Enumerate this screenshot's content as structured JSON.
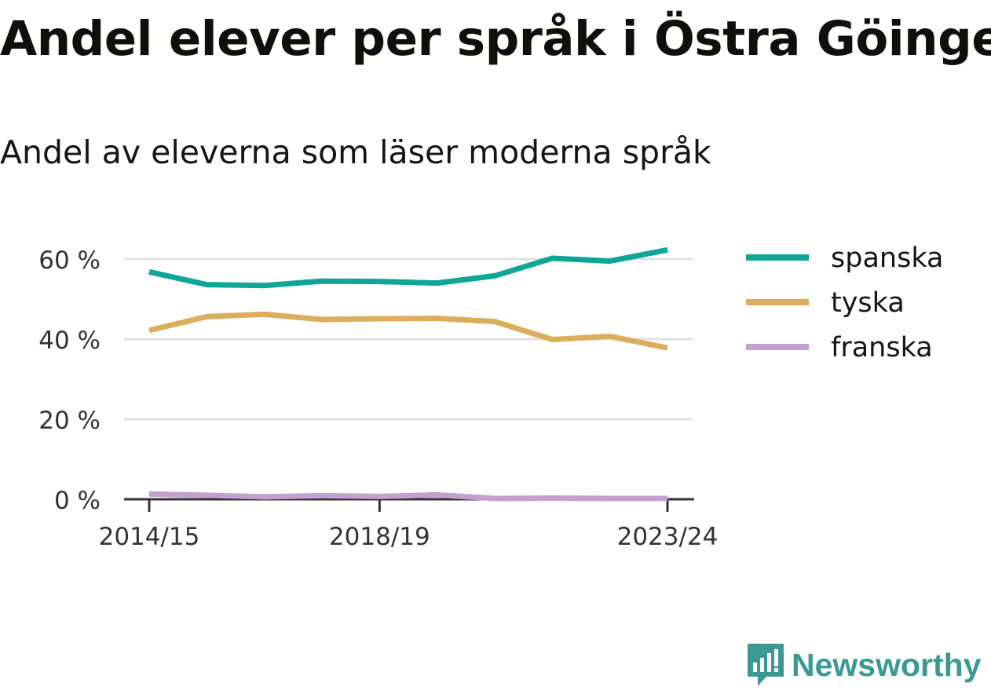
{
  "title": "Andel elever per språk i Östra Göinge",
  "subtitle": "Andel av eleverna som läser moderna språk",
  "brand": {
    "name": "Newsworthy",
    "color": "#3a9a93",
    "icon": "chart-bubble-icon"
  },
  "chart_data": {
    "type": "line",
    "x": [
      "2014/15",
      "2015/16",
      "2016/17",
      "2017/18",
      "2018/19",
      "2019/20",
      "2020/21",
      "2021/22",
      "2022/23",
      "2023/24"
    ],
    "x_tick_labels": [
      "2014/15",
      "2018/19",
      "2023/24"
    ],
    "y_ticks": [
      0,
      20,
      40,
      60
    ],
    "y_tick_labels": [
      "0 %",
      "20 %",
      "40 %",
      "60 %"
    ],
    "ylim": [
      0,
      65
    ],
    "grid": true,
    "legend_position": "right",
    "series": [
      {
        "name": "spanska",
        "color": "#0fa597",
        "values": [
          56.8,
          53.6,
          53.4,
          54.5,
          54.4,
          54.0,
          55.8,
          60.2,
          59.5,
          62.3
        ]
      },
      {
        "name": "tyska",
        "color": "#dcae5c",
        "values": [
          42.2,
          45.6,
          46.2,
          44.9,
          45.1,
          45.2,
          44.4,
          39.9,
          40.7,
          37.8
        ]
      },
      {
        "name": "franska",
        "color": "#c59fcf",
        "values": [
          1.3,
          1.0,
          0.6,
          0.9,
          0.7,
          1.1,
          0.2,
          0.3,
          0.2,
          0.2
        ]
      }
    ]
  }
}
